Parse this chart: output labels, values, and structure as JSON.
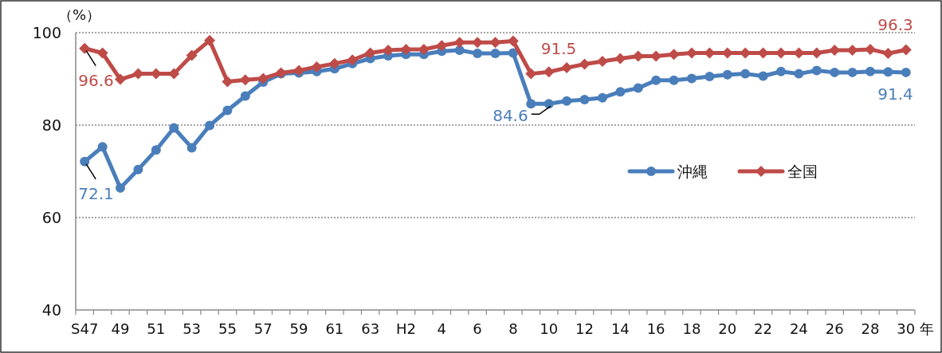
{
  "chart_data": {
    "type": "line",
    "ylabel": "（%）",
    "xlabel": "年",
    "categories": [
      "S47",
      null,
      "49",
      null,
      "51",
      null,
      "53",
      null,
      "55",
      null,
      "57",
      null,
      "59",
      null,
      "61",
      null,
      "63",
      null,
      "H2",
      null,
      "4",
      null,
      "6",
      null,
      "8",
      null,
      "10",
      null,
      "12",
      null,
      "14",
      null,
      "16",
      null,
      "18",
      null,
      "20",
      null,
      "22",
      null,
      "24",
      null,
      "26",
      null,
      "28",
      null,
      "30"
    ],
    "ylim": [
      40,
      100
    ],
    "yticks": [
      40,
      60,
      80,
      100
    ],
    "grid": "y",
    "legend": "right",
    "series": [
      {
        "name": "沖縄",
        "color": "#4a7ebb",
        "marker": "circle",
        "values": [
          72.1,
          75.3,
          66.4,
          70.4,
          74.6,
          79.4,
          75.1,
          79.9,
          83.2,
          86.3,
          89.3,
          91.1,
          91.3,
          91.6,
          92.2,
          93.3,
          94.4,
          95.0,
          95.3,
          95.3,
          96.0,
          96.2,
          95.5,
          95.5,
          95.6,
          84.6,
          84.6,
          85.2,
          85.5,
          85.9,
          87.2,
          88.0,
          89.7,
          89.7,
          90.1,
          90.5,
          90.9,
          91.1,
          90.6,
          91.6,
          91.1,
          91.8,
          91.4,
          91.4,
          91.6,
          91.5,
          91.4
        ],
        "value_labels": [
          "72.1",
          null,
          null,
          null,
          null,
          null,
          null,
          null,
          null,
          null,
          null,
          null,
          null,
          null,
          null,
          null,
          null,
          null,
          null,
          null,
          null,
          null,
          null,
          null,
          null,
          null,
          "84.6",
          null,
          null,
          null,
          null,
          null,
          null,
          null,
          null,
          null,
          null,
          null,
          null,
          null,
          null,
          null,
          null,
          null,
          null,
          null,
          "91.4"
        ]
      },
      {
        "name": "全国",
        "color": "#be4b48",
        "marker": "diamond",
        "values": [
          96.6,
          95.6,
          89.9,
          91.1,
          91.1,
          91.1,
          95.1,
          98.3,
          89.4,
          89.8,
          90.1,
          91.3,
          91.8,
          92.6,
          93.3,
          94.1,
          95.6,
          96.2,
          96.4,
          96.4,
          97.2,
          97.9,
          97.9,
          97.9,
          98.2,
          91.1,
          91.5,
          92.4,
          93.2,
          93.8,
          94.4,
          94.9,
          94.9,
          95.3,
          95.6,
          95.6,
          95.6,
          95.6,
          95.6,
          95.6,
          95.6,
          95.6,
          96.2,
          96.2,
          96.4,
          95.5,
          96.3
        ],
        "value_labels": [
          "96.6",
          null,
          null,
          null,
          null,
          null,
          null,
          null,
          null,
          null,
          null,
          null,
          null,
          null,
          null,
          null,
          null,
          null,
          null,
          null,
          null,
          null,
          null,
          null,
          null,
          null,
          "91.5",
          null,
          null,
          null,
          null,
          null,
          null,
          null,
          null,
          null,
          null,
          null,
          null,
          null,
          null,
          null,
          null,
          null,
          null,
          null,
          "96.3"
        ]
      }
    ]
  }
}
